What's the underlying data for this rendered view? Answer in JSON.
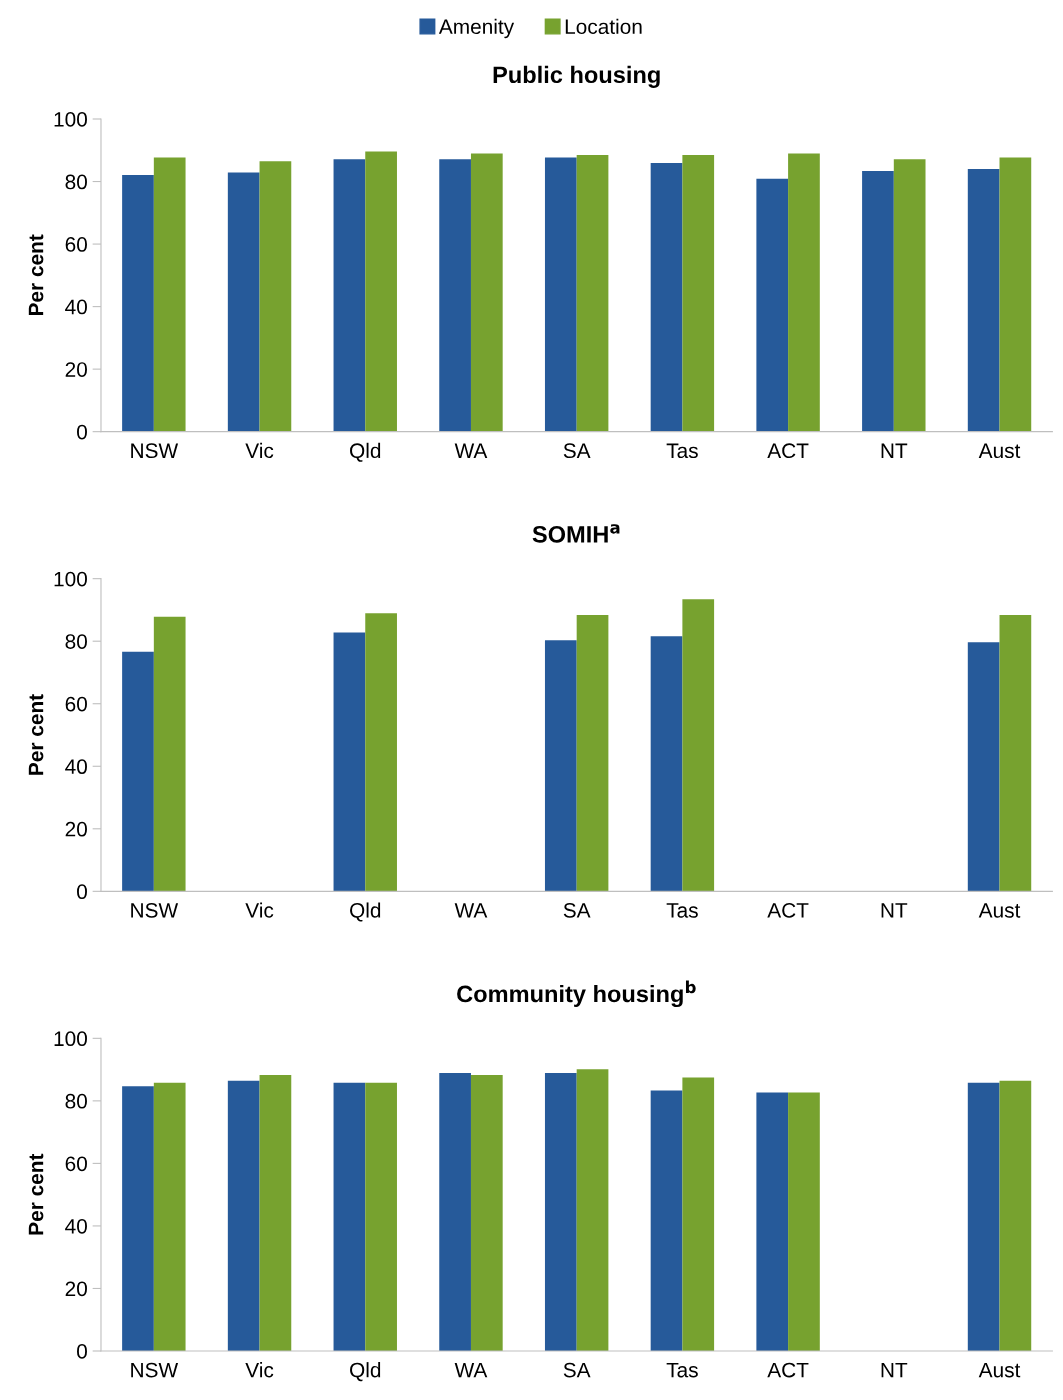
{
  "chart_data": [
    {
      "type": "bar",
      "title": "Public housing",
      "ylabel": "Per cent",
      "categories": [
        "NSW",
        "Vic",
        "Qld",
        "WA",
        "SA",
        "Tas",
        "ACT",
        "NT",
        "Aust"
      ],
      "series": [
        {
          "name": "Amenity",
          "color": "#265a9a",
          "values": [
            82.1,
            82.9,
            87.1,
            87.1,
            87.7,
            85.9,
            80.9,
            83.4,
            84.0
          ]
        },
        {
          "name": "Location",
          "color": "#77a22f",
          "values": [
            87.7,
            86.5,
            89.6,
            89.0,
            88.5,
            88.5,
            89.0,
            87.1,
            87.7
          ]
        }
      ],
      "ylim": [
        0,
        100
      ],
      "yticks": [
        0,
        20,
        40,
        60,
        80,
        100
      ],
      "grid": false,
      "legend": "top"
    },
    {
      "type": "bar",
      "title": "SOMIH$^{a}$",
      "ylabel": "Per cent",
      "categories": [
        "NSW",
        "Vic",
        "Qld",
        "WA",
        "SA",
        "Tas",
        "ACT",
        "NT",
        "Aust"
      ],
      "series": [
        {
          "color": "#265a9a",
          "values": [
            76.6,
            null,
            82.8,
            null,
            80.3,
            81.6,
            null,
            null,
            79.7
          ]
        },
        {
          "color": "#77a22f",
          "values": [
            87.8,
            null,
            88.9,
            null,
            88.4,
            93.4,
            null,
            null,
            88.4
          ]
        }
      ],
      "ylim": [
        0,
        100
      ],
      "yticks": [
        0,
        20,
        40,
        60,
        80,
        100
      ],
      "grid": false
    },
    {
      "type": "bar",
      "title": "Community housing$^{b}$",
      "ylabel": "Per cent",
      "categories": [
        "NSW",
        "Vic",
        "Qld",
        "WA",
        "SA",
        "Tas",
        "ACT",
        "NT",
        "Aust"
      ],
      "series": [
        {
          "color": "#265a9a",
          "values": [
            84.7,
            86.4,
            85.8,
            88.9,
            88.9,
            83.3,
            82.7,
            null,
            85.8
          ]
        },
        {
          "color": "#77a22f",
          "values": [
            85.8,
            88.3,
            85.8,
            88.3,
            90.1,
            87.5,
            82.7,
            null,
            86.4
          ]
        }
      ],
      "ylim": [
        0,
        100
      ],
      "yticks": [
        0,
        20,
        40,
        60,
        80,
        100
      ],
      "grid": false
    }
  ]
}
